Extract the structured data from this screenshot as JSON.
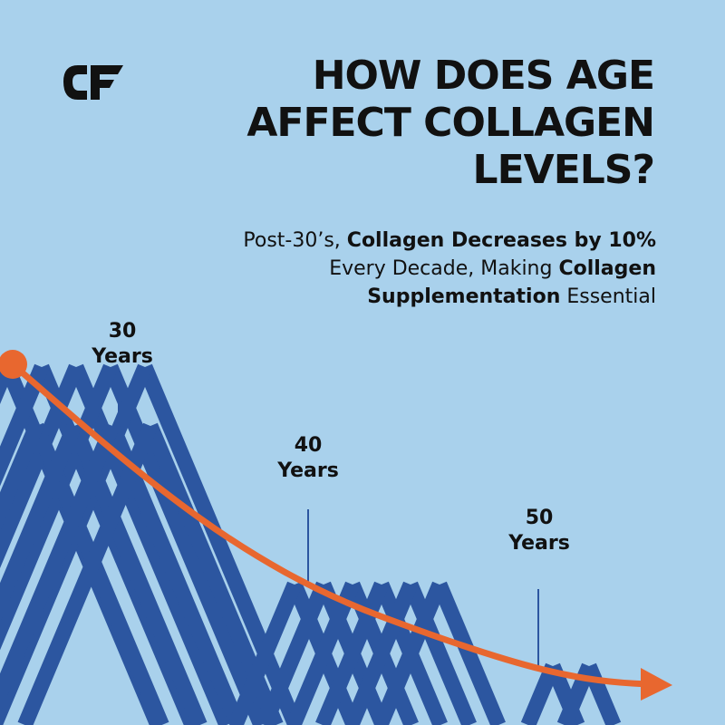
{
  "brand": {
    "logo_text": "CF"
  },
  "headline": {
    "lines": [
      "HOW DOES AGE",
      "AFFECT COLLAGEN",
      "LEVELS?"
    ]
  },
  "subtitle": {
    "part1": "Post-30’s, ",
    "bold1": "Collagen Decreases by 10%",
    "part2": " Every Decade, Making ",
    "bold2": "Collagen Supplementation",
    "part3": " Essential"
  },
  "markers": [
    {
      "number": "30",
      "unit": "Years"
    },
    {
      "number": "40",
      "unit": "Years"
    },
    {
      "number": "50",
      "unit": "Years"
    }
  ],
  "colors": {
    "background": "#a9d1ec",
    "fiber": "#2c56a0",
    "curve": "#e8672f",
    "text": "#111111",
    "marker_line": "#2c56a0"
  },
  "icons": {
    "curve_start": "dot-icon",
    "curve_end": "arrow-icon"
  }
}
